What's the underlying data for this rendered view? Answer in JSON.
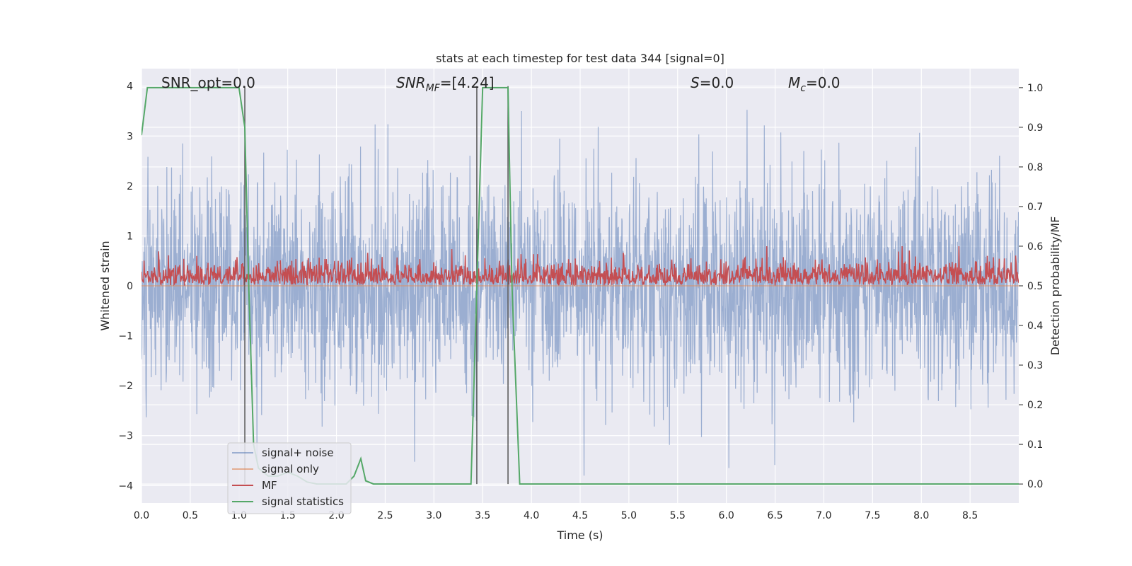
{
  "chart_data": {
    "type": "line",
    "title": "stats at each timestep for test data 344 [signal=0]",
    "xlabel": "Time (s)",
    "ylabel_left": "Whitened strain",
    "ylabel_right": "Detection probability/MF",
    "xlim": [
      0,
      9.0
    ],
    "ylim_left": [
      -4.35,
      4.35
    ],
    "ylim_right": [
      -0.048,
      1.048
    ],
    "xticks": [
      "0.0",
      "0.5",
      "1.0",
      "1.5",
      "2.0",
      "2.5",
      "3.0",
      "3.5",
      "4.0",
      "4.5",
      "5.0",
      "5.5",
      "6.0",
      "6.5",
      "7.0",
      "7.5",
      "8.0",
      "8.5"
    ],
    "xtick_values": [
      0,
      0.5,
      1,
      1.5,
      2,
      2.5,
      3,
      3.5,
      4,
      4.5,
      5,
      5.5,
      6,
      6.5,
      7,
      7.5,
      8,
      8.5
    ],
    "yticks_left": [
      "−4",
      "−3",
      "−2",
      "−1",
      "0",
      "1",
      "2",
      "3",
      "4"
    ],
    "ytick_values_left": [
      -4,
      -3,
      -2,
      -1,
      0,
      1,
      2,
      3,
      4
    ],
    "yticks_right": [
      "0.0",
      "0.1",
      "0.2",
      "0.3",
      "0.4",
      "0.5",
      "0.6",
      "0.7",
      "0.8",
      "0.9",
      "1.0"
    ],
    "ytick_values_right": [
      0,
      0.1,
      0.2,
      0.3,
      0.4,
      0.5,
      0.6,
      0.7,
      0.8,
      0.9,
      1.0
    ],
    "grid": true,
    "legend_position": "lower-left",
    "annotations": {
      "snr_opt": "SNR_opt=0.0",
      "snr_mf": "SNR",
      "snr_mf_sub": "MF",
      "snr_mf_val": "=[4.24]",
      "s": "S",
      "s_val": "=0.0",
      "mc": "M",
      "mc_sub": "c",
      "mc_val": "=0.0"
    },
    "vertical_lines_x": [
      1.06,
      3.44,
      3.76
    ],
    "series": [
      {
        "name": "signal+ noise",
        "color": "#4c72b0",
        "axis": "left",
        "description_range": [
          -3.8,
          3.9
        ]
      },
      {
        "name": "signal only",
        "color": "#dd8452",
        "axis": "left",
        "x": [
          0,
          9.0
        ],
        "y": [
          0,
          0
        ]
      },
      {
        "name": "MF",
        "color": "#c44e52",
        "axis": "right",
        "description_range": [
          0.5,
          0.6
        ]
      },
      {
        "name": "signal statistics",
        "color": "#55a868",
        "axis": "right",
        "x": [
          0.0,
          0.06,
          0.1,
          0.3,
          0.5,
          0.7,
          0.9,
          1.0,
          1.06,
          1.1,
          1.15,
          1.2,
          1.3,
          1.4,
          1.5,
          1.6,
          1.7,
          1.8,
          1.9,
          2.0,
          2.1,
          2.18,
          2.25,
          2.3,
          2.38,
          2.5,
          3.0,
          3.38,
          3.44,
          3.5,
          3.6,
          3.76,
          3.8,
          3.88,
          4.5,
          5.0,
          6.0,
          7.0,
          8.0,
          9.0
        ],
        "y": [
          0.88,
          1.0,
          1.0,
          1.0,
          1.0,
          1.0,
          1.0,
          1.0,
          0.9,
          0.5,
          0.1,
          0.04,
          0.02,
          0.02,
          0.03,
          0.02,
          0.005,
          0.0,
          0.0,
          0.0,
          0.0,
          0.02,
          0.064,
          0.008,
          0.0,
          0.0,
          0.0,
          0.0,
          0.5,
          1.0,
          1.0,
          1.0,
          0.5,
          0.0,
          0.0,
          0.0,
          0.0,
          0.0,
          0.0,
          0.0
        ]
      }
    ]
  }
}
